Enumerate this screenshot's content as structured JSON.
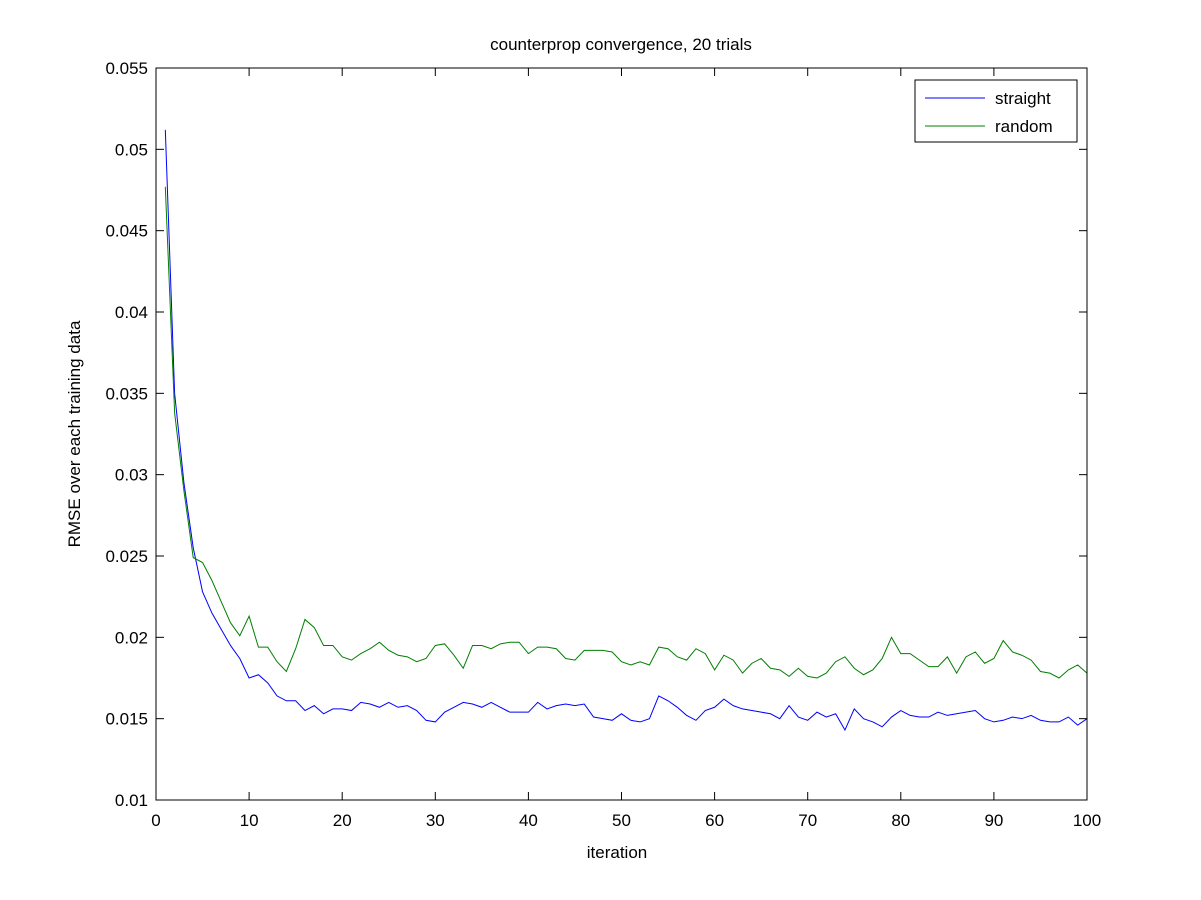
{
  "chart_data": {
    "type": "line",
    "title": "counterprop convergence, 20 trials",
    "xlabel": "iteration",
    "ylabel": "RMSE over each training data",
    "xlim": [
      0,
      100
    ],
    "ylim": [
      0.01,
      0.055
    ],
    "xticks": [
      "0",
      "10",
      "20",
      "30",
      "40",
      "50",
      "60",
      "70",
      "80",
      "90",
      "100"
    ],
    "yticks": [
      "0.01",
      "0.015",
      "0.02",
      "0.025",
      "0.03",
      "0.035",
      "0.04",
      "0.045",
      "0.05",
      "0.055"
    ],
    "grid": false,
    "legend_position": "top-right",
    "series": [
      {
        "name": "straight",
        "color": "#0000ff",
        "x": [
          1,
          2,
          3,
          4,
          5,
          6,
          7,
          8,
          9,
          10,
          11,
          12,
          13,
          14,
          15,
          16,
          17,
          18,
          19,
          20,
          21,
          22,
          23,
          24,
          25,
          26,
          27,
          28,
          29,
          30,
          31,
          32,
          33,
          34,
          35,
          36,
          37,
          38,
          39,
          40,
          41,
          42,
          43,
          44,
          45,
          46,
          47,
          48,
          49,
          50,
          51,
          52,
          53,
          54,
          55,
          56,
          57,
          58,
          59,
          60,
          61,
          62,
          63,
          64,
          65,
          66,
          67,
          68,
          69,
          70,
          71,
          72,
          73,
          74,
          75,
          76,
          77,
          78,
          79,
          80,
          81,
          82,
          83,
          84,
          85,
          86,
          87,
          88,
          89,
          90,
          91,
          92,
          93,
          94,
          95,
          96,
          97,
          98,
          99,
          100
        ],
        "values": [
          0.0512,
          0.035,
          0.0295,
          0.0255,
          0.0228,
          0.0215,
          0.0205,
          0.0195,
          0.0187,
          0.0175,
          0.0177,
          0.0172,
          0.0164,
          0.0161,
          0.0161,
          0.0155,
          0.0158,
          0.0153,
          0.0156,
          0.0156,
          0.0155,
          0.016,
          0.0159,
          0.0157,
          0.016,
          0.0157,
          0.0158,
          0.0155,
          0.0149,
          0.0148,
          0.0154,
          0.0157,
          0.016,
          0.0159,
          0.0157,
          0.016,
          0.0157,
          0.0154,
          0.0154,
          0.0154,
          0.016,
          0.0156,
          0.0158,
          0.0159,
          0.0158,
          0.0159,
          0.0151,
          0.015,
          0.0149,
          0.0153,
          0.0149,
          0.0148,
          0.015,
          0.0164,
          0.0161,
          0.0157,
          0.0152,
          0.0149,
          0.0155,
          0.0157,
          0.0162,
          0.0158,
          0.0156,
          0.0155,
          0.0154,
          0.0153,
          0.015,
          0.0158,
          0.0151,
          0.0149,
          0.0154,
          0.0151,
          0.0153,
          0.0143,
          0.0156,
          0.015,
          0.0148,
          0.0145,
          0.0151,
          0.0155,
          0.0152,
          0.0151,
          0.0151,
          0.0154,
          0.0152,
          0.0153,
          0.0154,
          0.0155,
          0.015,
          0.0148,
          0.0149,
          0.0151,
          0.015,
          0.0152,
          0.0149,
          0.0148,
          0.0148,
          0.0151,
          0.0146,
          0.015
        ]
      },
      {
        "name": "random",
        "color": "#007f00",
        "x": [
          1,
          2,
          3,
          4,
          5,
          6,
          7,
          8,
          9,
          10,
          11,
          12,
          13,
          14,
          15,
          16,
          17,
          18,
          19,
          20,
          21,
          22,
          23,
          24,
          25,
          26,
          27,
          28,
          29,
          30,
          31,
          32,
          33,
          34,
          35,
          36,
          37,
          38,
          39,
          40,
          41,
          42,
          43,
          44,
          45,
          46,
          47,
          48,
          49,
          50,
          51,
          52,
          53,
          54,
          55,
          56,
          57,
          58,
          59,
          60,
          61,
          62,
          63,
          64,
          65,
          66,
          67,
          68,
          69,
          70,
          71,
          72,
          73,
          74,
          75,
          76,
          77,
          78,
          79,
          80,
          81,
          82,
          83,
          84,
          85,
          86,
          87,
          88,
          89,
          90,
          91,
          92,
          93,
          94,
          95,
          96,
          97,
          98,
          99,
          100
        ],
        "values": [
          0.0477,
          0.0338,
          0.029,
          0.0249,
          0.0246,
          0.0235,
          0.0222,
          0.0209,
          0.0201,
          0.0213,
          0.0194,
          0.0194,
          0.0185,
          0.0179,
          0.0193,
          0.0211,
          0.0206,
          0.0195,
          0.0195,
          0.0188,
          0.0186,
          0.019,
          0.0193,
          0.0197,
          0.0192,
          0.0189,
          0.0188,
          0.0185,
          0.0187,
          0.0195,
          0.0196,
          0.0189,
          0.0181,
          0.0195,
          0.0195,
          0.0193,
          0.0196,
          0.0197,
          0.0197,
          0.019,
          0.0194,
          0.0194,
          0.0193,
          0.0187,
          0.0186,
          0.0192,
          0.0192,
          0.0192,
          0.0191,
          0.0185,
          0.0183,
          0.0185,
          0.0183,
          0.0194,
          0.0193,
          0.0188,
          0.0186,
          0.0193,
          0.019,
          0.018,
          0.0189,
          0.0186,
          0.0178,
          0.0184,
          0.0187,
          0.0181,
          0.018,
          0.0176,
          0.0181,
          0.0176,
          0.0175,
          0.0178,
          0.0185,
          0.0188,
          0.0181,
          0.0177,
          0.018,
          0.0187,
          0.02,
          0.019,
          0.019,
          0.0186,
          0.0182,
          0.0182,
          0.0188,
          0.0178,
          0.0188,
          0.0191,
          0.0184,
          0.0187,
          0.0198,
          0.0191,
          0.0189,
          0.0186,
          0.0179,
          0.0178,
          0.0175,
          0.018,
          0.0183,
          0.0178
        ]
      }
    ]
  }
}
